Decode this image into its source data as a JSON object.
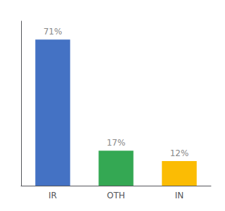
{
  "chart_data": {
    "type": "bar",
    "categories": [
      "IR",
      "OTH",
      "IN"
    ],
    "values": [
      71,
      17,
      12
    ],
    "value_labels": [
      "71%",
      "17%",
      "12%"
    ],
    "data_labels": true,
    "colors": [
      "#4472c4",
      "#34a853",
      "#fbbc04"
    ],
    "ylim": [
      0,
      80
    ],
    "grid": false,
    "tick_labels": "x"
  }
}
